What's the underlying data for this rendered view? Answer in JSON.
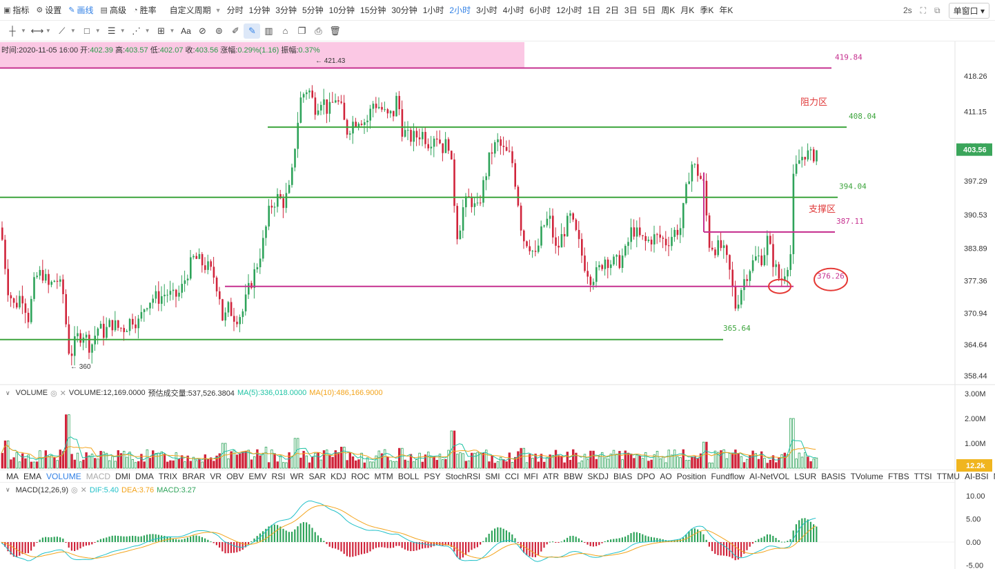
{
  "toolbar": {
    "items": [
      {
        "id": "indicator",
        "icon": "line-chart-icon",
        "label": "指标"
      },
      {
        "id": "settings",
        "icon": "gear-icon",
        "label": "设置"
      },
      {
        "id": "draw",
        "icon": "pencil-icon",
        "label": "画线",
        "active": true
      },
      {
        "id": "advanced",
        "icon": "calendar-icon",
        "label": "高级"
      },
      {
        "id": "winrate",
        "icon": "gauge-icon",
        "label": "胜率"
      }
    ],
    "custom_period": "自定义周期",
    "periods": [
      "分时",
      "1分钟",
      "3分钟",
      "5分钟",
      "10分钟",
      "15分钟",
      "30分钟",
      "1小时",
      "2小时",
      "3小时",
      "4小时",
      "6小时",
      "12小时",
      "1日",
      "2日",
      "3日",
      "5日",
      "周K",
      "月K",
      "季K",
      "年K"
    ],
    "active_period": "2小时",
    "refresh": "2s",
    "window_mode": "单窗口"
  },
  "draw_tools": [
    "crosshair-icon",
    "horizontal-ray-icon",
    "trend-line-icon",
    "rectangle-icon",
    "parallel-channel-icon",
    "fib-icon",
    "pattern-icon",
    "text-tool-icon",
    "measure-icon",
    "magnet-icon",
    "ruler-icon",
    "pencil-draw-icon",
    "bars-pattern-icon",
    "lock-icon",
    "copy-icon",
    "screenshot-icon",
    "trash-icon"
  ],
  "draw_text_tool": "Aa",
  "info": {
    "time_label": "时间:",
    "time": "2020-11-05 16:00",
    "open_label": "开:",
    "open": "402.39",
    "high_label": "高:",
    "high": "403.57",
    "low_label": "低:",
    "low": "402.07",
    "close_label": "收:",
    "close": "403.56",
    "change_label": "涨幅:",
    "change": "0.29%(1.16)",
    "amp_label": "振幅:",
    "amp": "0.37%"
  },
  "price_axis": {
    "ticks": [
      "418.26",
      "411.15",
      "404.34",
      "397.29",
      "390.53",
      "383.89",
      "377.36",
      "370.94",
      "364.64",
      "358.44"
    ],
    "current": "403.56",
    "current_color": "#3aa55a"
  },
  "annotations": {
    "high_marker": "421.43",
    "low_marker": "360",
    "resistance_label": "阻力区",
    "support_label": "支撑区",
    "line_419": "419.84",
    "line_408": "408.04",
    "line_394": "394.04",
    "line_387": "387.11",
    "line_376": "376.26",
    "line_365": "365.64"
  },
  "volume": {
    "name": "VOLUME",
    "value_text": "VOLUME:12,169.0000",
    "est_text": "预估成交量:537,526.3804",
    "ma5_text": "MA(5):336,018.0000",
    "ma10_text": "MA(10):486,166.9000",
    "axis": [
      "3.00M",
      "2.00M",
      "1.00M"
    ],
    "current": "12.2k",
    "current_color": "#f0b51f"
  },
  "indicator_tabs": [
    "MA",
    "EMA",
    "VOLUME",
    "MACD",
    "DMI",
    "DMA",
    "TRIX",
    "BRAR",
    "VR",
    "OBV",
    "EMV",
    "RSI",
    "WR",
    "SAR",
    "KDJ",
    "ROC",
    "MTM",
    "BOLL",
    "PSY",
    "StochRSI",
    "SMI",
    "CCI",
    "MFI",
    "ATR",
    "BBW",
    "SKDJ",
    "BIAS",
    "DPO",
    "AO",
    "Position",
    "Fundflow",
    "AI-NetVOL",
    "LSUR",
    "BASIS",
    "TVolume",
    "FTBS",
    "TTSI",
    "TTMU",
    "AI-BSI",
    "MLR"
  ],
  "active_indicator": "VOLUME",
  "dim_indicator": "MACD",
  "macd": {
    "name": "MACD(12,26,9)",
    "dif_text": "DIF:5.40",
    "dea_text": "DEA:3.76",
    "macd_text": "MACD:3.27",
    "axis": [
      "10.00",
      "5.00",
      "0.00",
      "-5.00"
    ]
  },
  "colors": {
    "up": "#2ea35a",
    "down": "#d0243b",
    "support_line": "#3ca43c",
    "level_line": "#c6308f",
    "ma5": "#1ec3a4",
    "ma10": "#f3a31a",
    "dif": "#20c0c8",
    "dea": "#f3a31a"
  },
  "chart_data": {
    "type": "candlestick",
    "price_range": [
      358.44,
      421.43
    ],
    "close_path": [
      [
        0,
        388
      ],
      [
        10,
        376
      ],
      [
        20,
        372
      ],
      [
        30,
        375
      ],
      [
        40,
        370
      ],
      [
        50,
        378
      ],
      [
        60,
        379
      ],
      [
        70,
        376
      ],
      [
        80,
        378
      ],
      [
        90,
        375
      ],
      [
        95,
        368
      ],
      [
        100,
        362
      ],
      [
        110,
        366
      ],
      [
        120,
        367
      ],
      [
        130,
        364
      ],
      [
        140,
        368
      ],
      [
        150,
        367
      ],
      [
        160,
        369
      ],
      [
        170,
        368
      ],
      [
        180,
        368
      ],
      [
        190,
        370
      ],
      [
        200,
        369
      ],
      [
        210,
        373
      ],
      [
        220,
        374
      ],
      [
        230,
        374
      ],
      [
        240,
        375
      ],
      [
        250,
        374
      ],
      [
        260,
        375
      ],
      [
        270,
        379
      ],
      [
        280,
        382
      ],
      [
        290,
        381
      ],
      [
        300,
        380
      ],
      [
        310,
        378
      ],
      [
        318,
        374
      ],
      [
        322,
        369
      ],
      [
        330,
        372
      ],
      [
        340,
        370
      ],
      [
        350,
        371
      ],
      [
        360,
        376
      ],
      [
        370,
        380
      ],
      [
        380,
        385
      ],
      [
        390,
        392
      ],
      [
        400,
        394
      ],
      [
        410,
        393
      ],
      [
        420,
        396
      ],
      [
        428,
        407
      ],
      [
        435,
        414
      ],
      [
        445,
        416
      ],
      [
        455,
        412
      ],
      [
        465,
        414
      ],
      [
        475,
        411
      ],
      [
        485,
        414
      ],
      [
        495,
        411
      ],
      [
        500,
        407
      ],
      [
        510,
        409
      ],
      [
        520,
        410
      ],
      [
        530,
        409
      ],
      [
        540,
        413
      ],
      [
        550,
        412
      ],
      [
        560,
        410
      ],
      [
        570,
        411
      ],
      [
        575,
        415
      ],
      [
        580,
        408
      ],
      [
        590,
        406
      ],
      [
        600,
        406
      ],
      [
        610,
        407
      ],
      [
        620,
        405
      ],
      [
        630,
        407
      ],
      [
        640,
        404
      ],
      [
        650,
        405
      ],
      [
        656,
        395
      ],
      [
        662,
        386
      ],
      [
        670,
        392
      ],
      [
        680,
        394
      ],
      [
        690,
        391
      ],
      [
        700,
        397
      ],
      [
        710,
        403
      ],
      [
        720,
        405
      ],
      [
        730,
        403
      ],
      [
        740,
        402
      ],
      [
        748,
        395
      ],
      [
        756,
        386
      ],
      [
        765,
        385
      ],
      [
        775,
        382
      ],
      [
        785,
        388
      ],
      [
        795,
        390
      ],
      [
        805,
        383
      ],
      [
        815,
        387
      ],
      [
        825,
        390
      ],
      [
        835,
        386
      ],
      [
        845,
        381
      ],
      [
        855,
        378
      ],
      [
        865,
        379
      ],
      [
        875,
        382
      ],
      [
        885,
        381
      ],
      [
        895,
        381
      ],
      [
        905,
        383
      ],
      [
        915,
        388
      ],
      [
        925,
        386
      ],
      [
        935,
        385
      ],
      [
        945,
        386
      ],
      [
        955,
        386
      ],
      [
        965,
        385
      ],
      [
        975,
        387
      ],
      [
        985,
        388
      ],
      [
        993,
        395
      ],
      [
        1000,
        401
      ],
      [
        1010,
        399
      ],
      [
        1020,
        396
      ],
      [
        1025,
        385
      ],
      [
        1035,
        384
      ],
      [
        1045,
        384
      ],
      [
        1055,
        380
      ],
      [
        1065,
        372
      ],
      [
        1075,
        377
      ],
      [
        1085,
        380
      ],
      [
        1095,
        382
      ],
      [
        1105,
        382
      ],
      [
        1110,
        386
      ],
      [
        1120,
        381
      ],
      [
        1130,
        377
      ],
      [
        1140,
        381
      ],
      [
        1145,
        383
      ],
      [
        1148,
        397
      ],
      [
        1155,
        401
      ],
      [
        1165,
        403
      ],
      [
        1175,
        402
      ],
      [
        1183,
        403.56
      ]
    ],
    "volume_max_m": 3.0,
    "macd_range": [
      -5,
      10
    ]
  }
}
